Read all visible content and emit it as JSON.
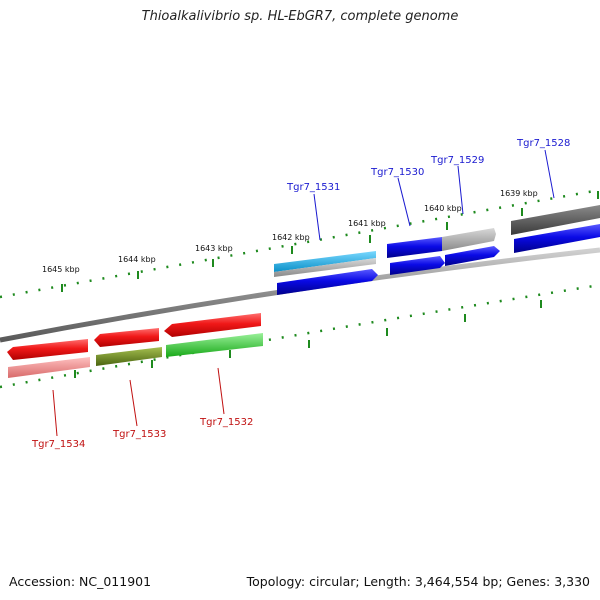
{
  "title": "Thioalkalivibrio sp. HL-EbGR7, complete genome",
  "footer": {
    "accession": "Accession: NC_011901",
    "summary": "Topology: circular; Length: 3,464,554 bp; Genes: 3,330"
  },
  "ticks": {
    "inner": [
      "1645 kbp",
      "1644 kbp",
      "1643 kbp",
      "1642 kbp",
      "1641 kbp",
      "1640 kbp",
      "1639 kbp"
    ]
  },
  "genes": {
    "forward": [
      "Tgr7_1531",
      "Tgr7_1530",
      "Tgr7_1529",
      "Tgr7_1528"
    ],
    "reverse": [
      "Tgr7_1534",
      "Tgr7_1533",
      "Tgr7_1532"
    ]
  },
  "colors": {
    "forward_label": "#1a1ad0",
    "reverse_label": "#c01010",
    "tick": "#1e8a1e",
    "blue": "#0a0ae6",
    "cyan": "#1ab4e8",
    "gray": "#9a9a9a",
    "darkgray": "#555555",
    "red": "#f01818",
    "pink": "#f08a8a",
    "olive": "#6e8a1e",
    "green": "#2ccc2c"
  }
}
